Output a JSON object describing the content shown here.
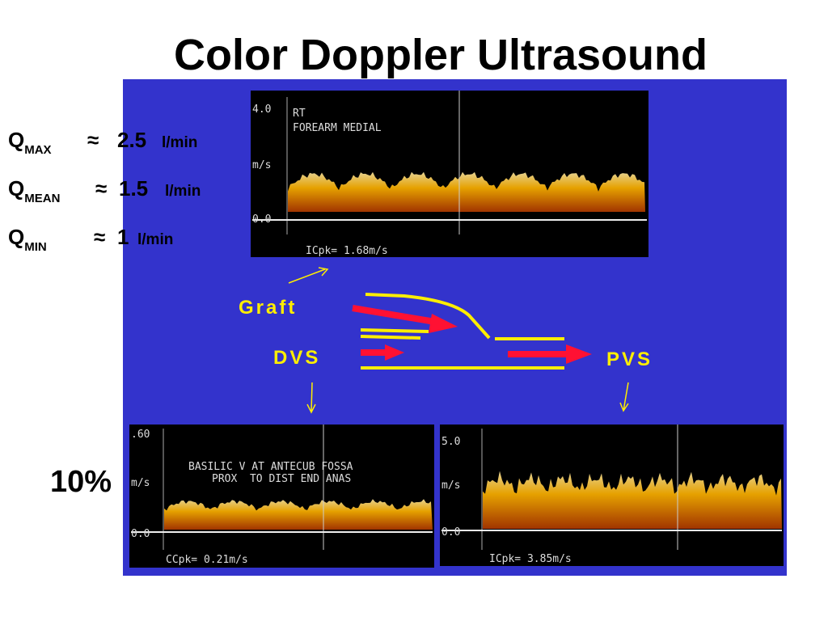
{
  "title": "Color Doppler Ultrasound",
  "flow": [
    {
      "symbol": "Q",
      "subscript": "MAX",
      "approx": "≈",
      "value": "2.5",
      "unit": "l/min"
    },
    {
      "symbol": "Q",
      "subscript": "MEAN",
      "approx": "≈",
      "value": "1.5",
      "unit": "l/min"
    },
    {
      "symbol": "Q",
      "subscript": "MIN",
      "approx": "≈",
      "value": "1",
      "unit": "l/min"
    }
  ],
  "percentage": "10%",
  "diagram": {
    "graft": "Graft",
    "dvs": "DVS",
    "pvs": "PVS"
  },
  "images": [
    {
      "scale_top": "4.0",
      "labels": [
        "RT",
        "FOREARM MEDIAL"
      ],
      "unit": "m/s",
      "scale_zero": "0.0",
      "peak": "ICpk= 1.68m/s"
    },
    {
      "scale_top": ".60",
      "labels": [
        "BASILIC V AT ANTECUB FOSSA",
        "PROX  TO DIST END ANAS"
      ],
      "unit": "m/s",
      "scale_zero": "0.0",
      "peak": "CCpk= 0.21m/s"
    },
    {
      "scale_top": "5.0",
      "unit": "m/s",
      "scale_zero": "0.0",
      "peak": "ICpk= 3.85m/s"
    }
  ]
}
